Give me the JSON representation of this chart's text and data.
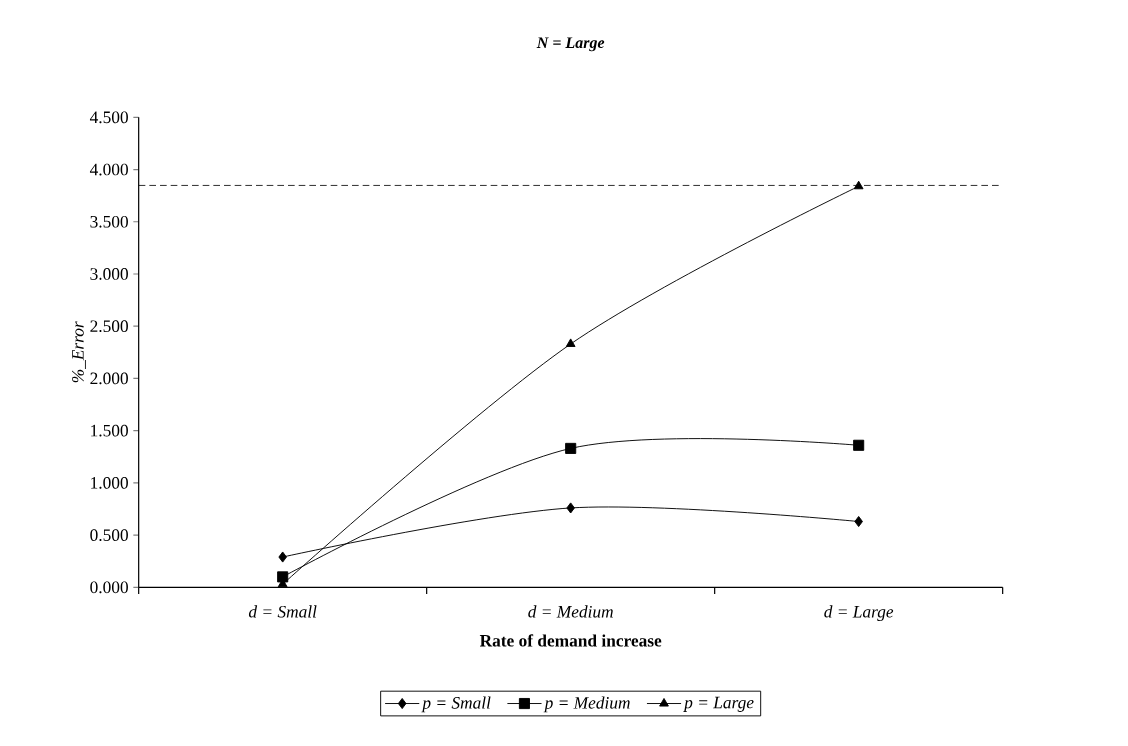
{
  "chart_data": {
    "type": "line",
    "title": "N = Large",
    "xlabel": "Rate of demand increase",
    "ylabel": "%_Error",
    "categories": [
      "d = Small",
      "d = Medium",
      "d = Large"
    ],
    "series": [
      {
        "name": "p = Small",
        "color": "#000000",
        "marker": "diamond",
        "values": [
          0.29,
          0.76,
          0.63
        ]
      },
      {
        "name": "p = Medium",
        "color": "#000000",
        "marker": "square",
        "values": [
          0.1,
          1.33,
          1.36
        ]
      },
      {
        "name": "p = Large",
        "color": "#000000",
        "marker": "triangle",
        "values": [
          0.03,
          2.33,
          3.84
        ]
      }
    ],
    "ylim": [
      0,
      4.5
    ],
    "yticks": [
      {
        "value": 0,
        "label": "0.000"
      },
      {
        "value": 0.5,
        "label": "0.500"
      },
      {
        "value": 1,
        "label": "1.000"
      },
      {
        "value": 1.5,
        "label": "1.500"
      },
      {
        "value": 2,
        "label": "2.000"
      },
      {
        "value": 2.5,
        "label": "2.500"
      },
      {
        "value": 3,
        "label": "3.000"
      },
      {
        "value": 3.5,
        "label": "3.500"
      },
      {
        "value": 4,
        "label": "4.000"
      },
      {
        "value": 4.5,
        "label": "4.500"
      }
    ],
    "ref_lines": [
      {
        "axis": "y",
        "value": 3.85,
        "color": "#000000",
        "line_style": "dashed"
      }
    ],
    "grid": false,
    "legend": "bottom",
    "line_style": "solid"
  }
}
